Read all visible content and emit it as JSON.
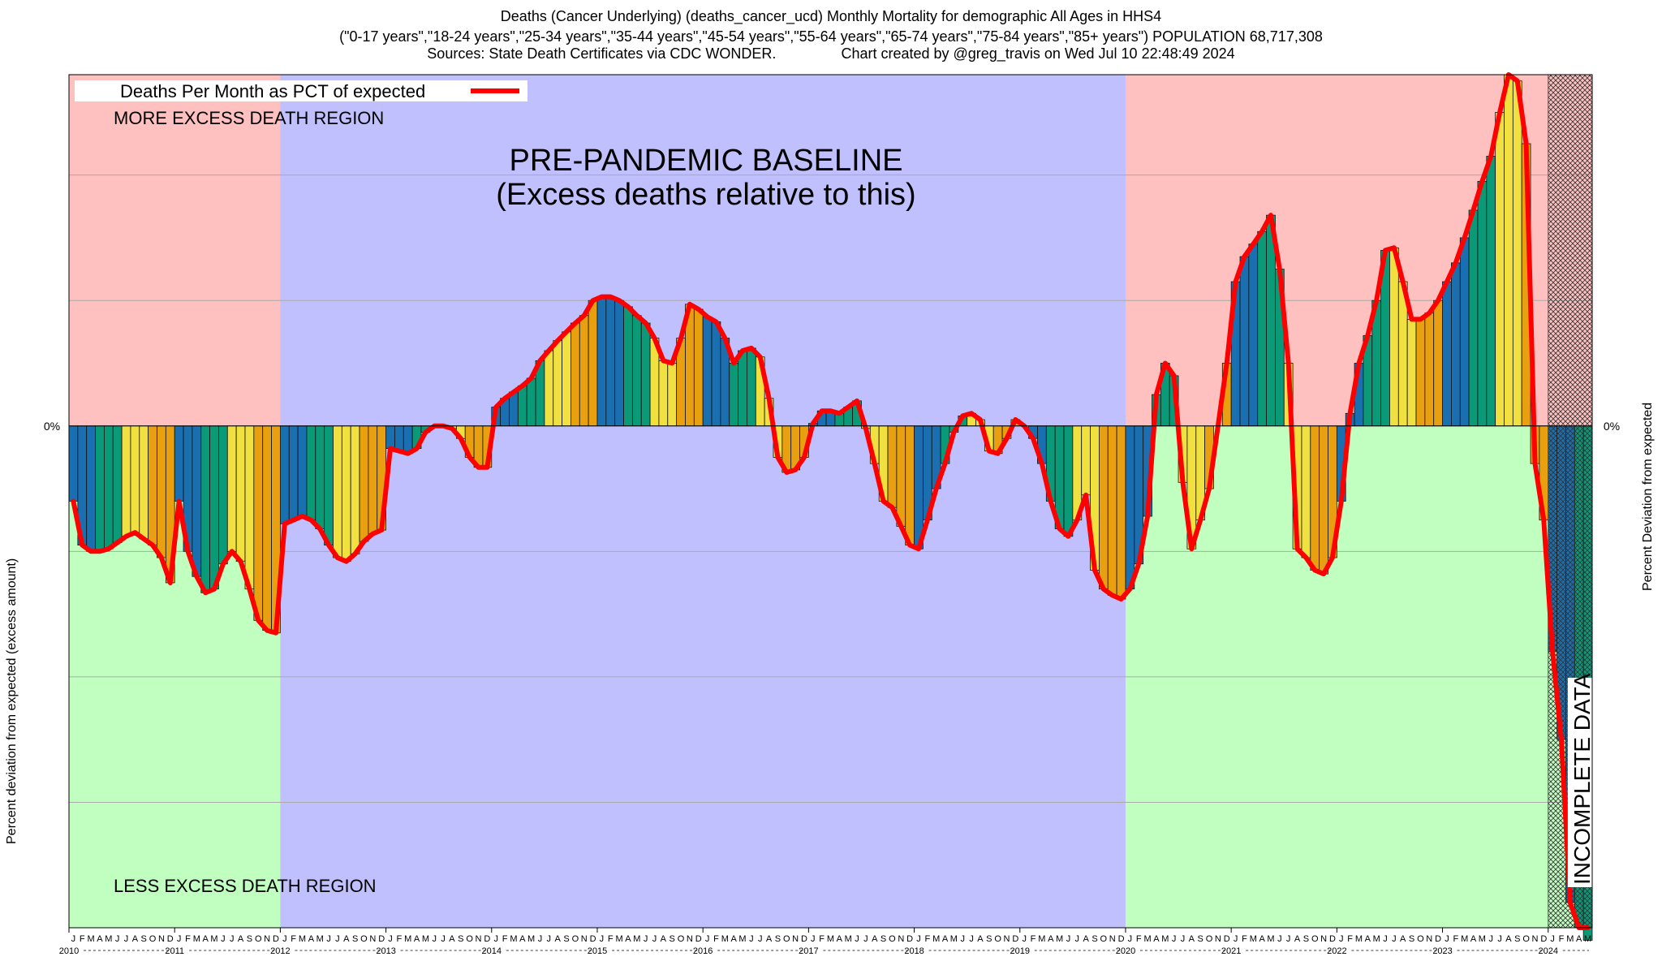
{
  "header": {
    "title_line1": "Deaths (Cancer Underlying) (deaths_cancer_ucd) Monthly Mortality for demographic All Ages in HHS4",
    "title_line2": "(\"0-17 years\",\"18-24 years\",\"25-34 years\",\"35-44 years\",\"45-54 years\",\"55-64 years\",\"65-74 years\",\"75-84 years\",\"85+ years\") POPULATION 68,717,308",
    "title_line3": "Sources: State Death Certificates via CDC WONDER.                Chart created by @greg_travis on Wed Jul 10 22:48:49 2024"
  },
  "colors": {
    "excess_region": "#ffc0c0",
    "less_region": "#c0ffc0",
    "baseline_region": "#c0c0ff",
    "line": "#ff0000",
    "bar_palette": [
      "#1a6fb0",
      "#0a9a78",
      "#f0e040",
      "#e8a010"
    ]
  },
  "chart_data": {
    "type": "bar",
    "title": "Deaths (Cancer Underlying) (deaths_cancer_ucd) Monthly Mortality for demographic All Ages in HHS4",
    "ylabel_left": "Percent deviation from expected (excess amount)",
    "ylabel_right": "Percent Deviation from expected",
    "zero_label_left": "0%",
    "zero_label_right": "0%",
    "ylim": [
      -4,
      2.8
    ],
    "series_name": "Deaths Per Month as PCT of expected",
    "legend_position": "top-left",
    "regions": {
      "more_excess": "MORE EXCESS DEATH REGION",
      "less_excess": "LESS EXCESS DEATH REGION",
      "baseline_title": "PRE-PANDEMIC BASELINE",
      "baseline_subtitle": "(Excess deaths relative to this)",
      "baseline_years": [
        "2012",
        "2019"
      ],
      "incomplete": "INCOMPLETE DATA",
      "incomplete_start": "2024-01"
    },
    "month_letters": [
      "J",
      "F",
      "M",
      "A",
      "M",
      "J",
      "J",
      "A",
      "S",
      "O",
      "N",
      "D"
    ],
    "years": [
      "2010",
      "2011",
      "2012",
      "2013",
      "2014",
      "2015",
      "2016",
      "2017",
      "2018",
      "2019",
      "2020",
      "2021",
      "2022",
      "2023",
      "2024"
    ],
    "start": "2010-01",
    "values": [
      -0.6,
      -0.95,
      -1.0,
      -1.0,
      -0.98,
      -0.93,
      -0.88,
      -0.85,
      -0.9,
      -0.95,
      -1.05,
      -1.25,
      -0.6,
      -1.0,
      -1.2,
      -1.33,
      -1.3,
      -1.1,
      -1.0,
      -1.08,
      -1.3,
      -1.55,
      -1.63,
      -1.65,
      -0.78,
      -0.75,
      -0.72,
      -0.75,
      -0.82,
      -0.95,
      -1.05,
      -1.08,
      -1.02,
      -0.92,
      -0.86,
      -0.83,
      -0.18,
      -0.2,
      -0.22,
      -0.18,
      -0.05,
      0.0,
      0.0,
      -0.02,
      -0.1,
      -0.25,
      -0.33,
      -0.33,
      0.15,
      0.22,
      0.27,
      0.32,
      0.38,
      0.52,
      0.6,
      0.68,
      0.75,
      0.82,
      0.88,
      1.0,
      1.03,
      1.03,
      1.0,
      0.95,
      0.88,
      0.82,
      0.7,
      0.52,
      0.5,
      0.7,
      0.97,
      0.93,
      0.87,
      0.83,
      0.7,
      0.5,
      0.6,
      0.62,
      0.55,
      0.22,
      -0.25,
      -0.37,
      -0.35,
      -0.25,
      0.02,
      0.12,
      0.12,
      0.1,
      0.15,
      0.2,
      -0.02,
      -0.3,
      -0.6,
      -0.65,
      -0.8,
      -0.95,
      -0.98,
      -0.75,
      -0.5,
      -0.3,
      -0.05,
      0.08,
      0.1,
      0.05,
      -0.2,
      -0.22,
      -0.1,
      0.05,
      0.0,
      -0.1,
      -0.3,
      -0.6,
      -0.82,
      -0.88,
      -0.75,
      -0.55,
      -1.15,
      -1.3,
      -1.35,
      -1.38,
      -1.3,
      -1.1,
      -0.72,
      0.25,
      0.5,
      0.4,
      -0.45,
      -0.98,
      -0.75,
      -0.5,
      0.0,
      0.5,
      1.15,
      1.35,
      1.45,
      1.55,
      1.68,
      1.25,
      0.5,
      -0.98,
      -1.05,
      -1.15,
      -1.18,
      -1.05,
      -0.6,
      0.1,
      0.5,
      0.72,
      1.0,
      1.4,
      1.42,
      1.15,
      0.85,
      0.85,
      0.9,
      1.0,
      1.15,
      1.3,
      1.5,
      1.72,
      1.95,
      2.15,
      2.5,
      2.8,
      2.75,
      2.25,
      -0.3,
      -0.75,
      -1.8,
      -2.5,
      -3.8,
      -4.0,
      -4.1
    ]
  }
}
